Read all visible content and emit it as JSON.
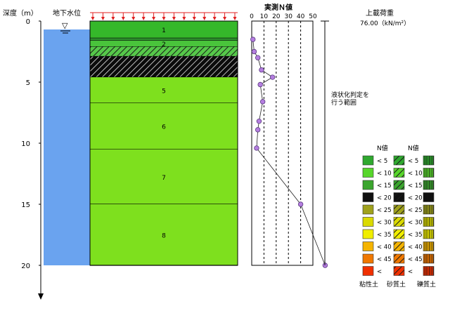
{
  "depth_axis": {
    "label": "深度（m）",
    "ticks": [
      0,
      5,
      10,
      15,
      20
    ]
  },
  "groundwater": {
    "label": "地下水位",
    "symbol": "▽"
  },
  "layers": [
    {
      "no": "1",
      "top": 0.0,
      "bottom": 1.4,
      "fill": "#35b82a",
      "hatch": false
    },
    {
      "no": "",
      "top": 1.4,
      "bottom": 1.6,
      "fill": "#2e8f2e",
      "hatch": false
    },
    {
      "no": "2",
      "top": 1.6,
      "bottom": 2.1,
      "fill": "#49c43b",
      "hatch": false
    },
    {
      "no": "",
      "top": 2.1,
      "bottom": 2.9,
      "fill": "#56c94a",
      "hatch": true
    },
    {
      "no": "",
      "top": 2.9,
      "bottom": 4.6,
      "fill": "#0b0b0b",
      "hatch": true
    },
    {
      "no": "5",
      "top": 4.6,
      "bottom": 6.7,
      "fill": "#7ee01e",
      "hatch": false
    },
    {
      "no": "6",
      "top": 6.7,
      "bottom": 10.5,
      "fill": "#7ee01e",
      "hatch": false
    },
    {
      "no": "7",
      "top": 10.5,
      "bottom": 15.0,
      "fill": "#7ee01e",
      "hatch": false
    },
    {
      "no": "8",
      "top": 15.0,
      "bottom": 20.0,
      "fill": "#7ee01e",
      "hatch": false
    }
  ],
  "chart_data": {
    "type": "scatter",
    "title": "実測Ｎ値",
    "x_ticks": [
      0,
      10,
      20,
      30,
      40,
      50
    ],
    "xlim": [
      0,
      60
    ],
    "ylim": [
      0,
      20
    ],
    "x": [
      1,
      2,
      5,
      8,
      17,
      7,
      9,
      6,
      5,
      4,
      40,
      60
    ],
    "y": [
      1.5,
      2.5,
      3.0,
      4.0,
      4.6,
      5.2,
      6.6,
      8.2,
      8.9,
      10.4,
      15.0,
      20.0
    ]
  },
  "liquefaction": {
    "label_line1": "液状化判定を",
    "label_line2": "行う範囲"
  },
  "surcharge": {
    "label": "上載荷重",
    "value": "76.00（kN/m²）"
  },
  "legend": {
    "n_header_1": "N値",
    "n_header_2": "N値",
    "rows": [
      "< 5",
      "< 10",
      "< 15",
      "< 20",
      "< 25",
      "< 30",
      "< 35",
      "< 40",
      "< 45",
      "<"
    ],
    "colors": [
      "#2fa82f",
      "#57d62b",
      "#3ba52e",
      "#101010",
      "#a0a21c",
      "#dada00",
      "#f0ee00",
      "#f5b400",
      "#f07800",
      "#f03000"
    ],
    "col_labels": [
      "粘性土",
      "砂質土",
      "礫質土"
    ]
  }
}
